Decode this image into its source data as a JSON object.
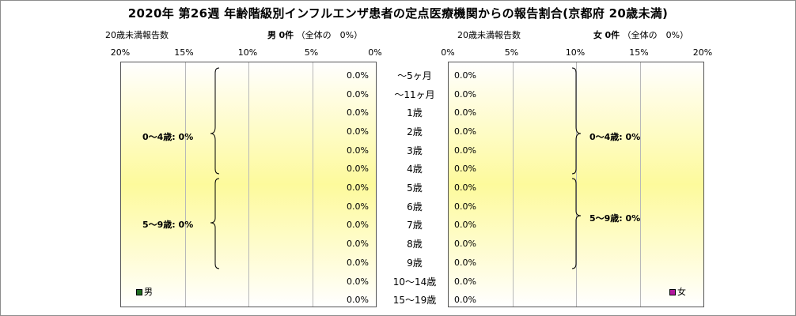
{
  "title": "2020年 第26週 年齢階級別インフルエンザ患者の定点医療機関からの報告割合(京都府 20歳未満)",
  "male": {
    "left_label": "20歳未満報告数",
    "sex": "男",
    "count": "0件",
    "share": "（全体の　0%）",
    "legend": "男"
  },
  "female": {
    "left_label": "20歳未満報告数",
    "sex": "女",
    "count": "0件",
    "share": "（全体の　0%）",
    "legend": "女"
  },
  "groups": [
    "0～4歳: 0%",
    "5～9歳: 0%"
  ],
  "colors": {
    "male": "#1f6b1f",
    "female": "#b3179e",
    "grid": "#b8b8b8"
  },
  "chart_data": {
    "type": "bar",
    "title": "2020年 第26週 年齢階級別インフルエンザ患者の定点医療機関からの報告割合(京都府 20歳未満)",
    "categories": [
      "～5ヶ月",
      "～11ヶ月",
      "1歳",
      "2歳",
      "3歳",
      "4歳",
      "5歳",
      "6歳",
      "7歳",
      "8歳",
      "9歳",
      "10～14歳",
      "15～19歳"
    ],
    "series": [
      {
        "name": "男",
        "values": [
          0,
          0,
          0,
          0,
          0,
          0,
          0,
          0,
          0,
          0,
          0,
          0,
          0
        ],
        "labels": [
          "0.0%",
          "0.0%",
          "0.0%",
          "0.0%",
          "0.0%",
          "0.0%",
          "0.0%",
          "0.0%",
          "0.0%",
          "0.0%",
          "0.0%",
          "0.0%",
          "0.0%"
        ]
      },
      {
        "name": "女",
        "values": [
          0,
          0,
          0,
          0,
          0,
          0,
          0,
          0,
          0,
          0,
          0,
          0,
          0
        ],
        "labels": [
          "0.0%",
          "0.0%",
          "0.0%",
          "0.0%",
          "0.0%",
          "0.0%",
          "0.0%",
          "0.0%",
          "0.0%",
          "0.0%",
          "0.0%",
          "0.0%",
          "0.0%"
        ]
      }
    ],
    "xlim": [
      0,
      20
    ],
    "male_ticks": [
      "20%",
      "15%",
      "10%",
      "5%",
      "0%"
    ],
    "female_ticks": [
      "0%",
      "5%",
      "10%",
      "15%",
      "20%"
    ],
    "grid": true
  }
}
